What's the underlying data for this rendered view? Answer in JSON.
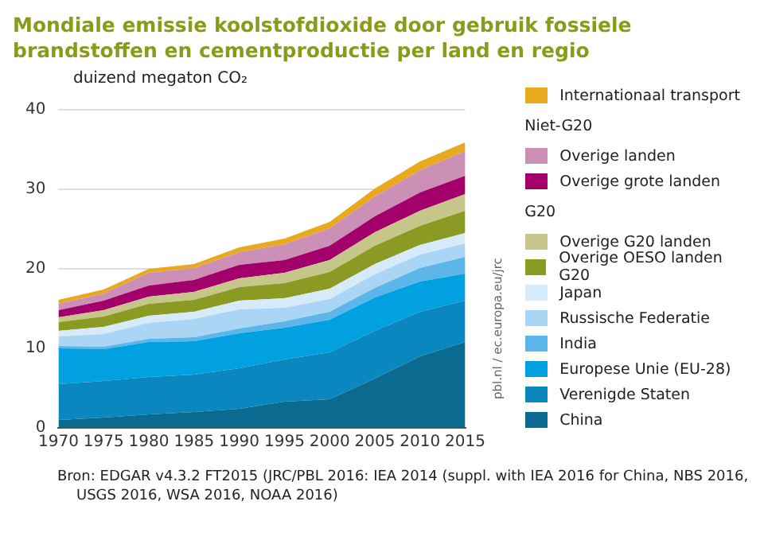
{
  "chart_data": {
    "type": "area",
    "title": "Mondiale emissie koolstofdioxide door gebruik fossiele brandstoffen en cementproductie per land en regio",
    "ylabel": "duizend megaton CO₂",
    "stacked": true,
    "legend": "right",
    "grid": "y",
    "annotations": [
      "Niet-G20",
      "G20",
      "pbl.nl / ec.europa.eu/jrc",
      "Bron: EDGAR v4.3.2 FT2015 (JRC/PBL 2016: IEA 2014 (suppl. with IEA 2016 for China, NBS 2016, USGS 2016, WSA 2016, NOAA 2016)"
    ],
    "x": [
      1970,
      1975,
      1980,
      1985,
      1990,
      1995,
      2000,
      2005,
      2010,
      2015
    ],
    "xlim": [
      1970,
      2015
    ],
    "xticks": [
      1970,
      1975,
      1980,
      1985,
      1990,
      1995,
      2000,
      2005,
      2010,
      2015
    ],
    "ylim": [
      0,
      40
    ],
    "yticks": [
      0,
      10,
      20,
      30,
      40
    ],
    "series": [
      {
        "name": "China",
        "color": "#0a6a8f",
        "values": [
          1.0,
          1.3,
          1.7,
          2.0,
          2.4,
          3.3,
          3.6,
          6.2,
          9.0,
          10.8
        ]
      },
      {
        "name": "Verenigde Staten",
        "color": "#0b87c0",
        "values": [
          4.5,
          4.6,
          4.7,
          4.7,
          5.1,
          5.3,
          5.9,
          6.0,
          5.6,
          5.2
        ]
      },
      {
        "name": "Europese Unie (EU-28)",
        "color": "#00a0e1",
        "values": [
          4.5,
          4.0,
          4.4,
          4.2,
          4.4,
          4.0,
          4.1,
          4.2,
          3.8,
          3.4
        ]
      },
      {
        "name": "India",
        "color": "#5cb6ea",
        "values": [
          0.3,
          0.3,
          0.4,
          0.5,
          0.6,
          0.8,
          1.0,
          1.2,
          1.7,
          2.1
        ]
      },
      {
        "name": "Russische Federatie",
        "color": "#aad5f5",
        "values": [
          1.2,
          1.6,
          2.0,
          2.3,
          2.4,
          1.7,
          1.6,
          1.7,
          1.7,
          1.7
        ]
      },
      {
        "name": "Japan",
        "color": "#d7eafa",
        "values": [
          0.7,
          0.9,
          0.9,
          0.9,
          1.1,
          1.2,
          1.3,
          1.3,
          1.2,
          1.3
        ]
      },
      {
        "name": "Overige OESO landen G20",
        "color": "#8a9a22",
        "values": [
          1.1,
          1.3,
          1.5,
          1.5,
          1.7,
          1.9,
          2.1,
          2.3,
          2.4,
          2.8
        ]
      },
      {
        "name": "Overige G20 landen",
        "color": "#c6c68a",
        "values": [
          0.6,
          0.8,
          0.9,
          1.0,
          1.1,
          1.3,
          1.5,
          1.7,
          1.9,
          2.1
        ]
      },
      {
        "name": "Overige grote landen",
        "color": "#a3006b",
        "values": [
          0.9,
          1.2,
          1.4,
          1.5,
          1.7,
          1.6,
          1.8,
          2.0,
          2.3,
          2.3
        ]
      },
      {
        "name": "Overige landen",
        "color": "#cc8fb5",
        "values": [
          0.8,
          0.9,
          1.6,
          1.5,
          1.6,
          2.0,
          2.2,
          2.5,
          2.8,
          3.1
        ]
      },
      {
        "name": "Internationaal transport",
        "color": "#e9a91d",
        "values": [
          0.5,
          0.5,
          0.5,
          0.5,
          0.6,
          0.7,
          0.8,
          1.0,
          1.1,
          1.1
        ]
      }
    ]
  }
}
